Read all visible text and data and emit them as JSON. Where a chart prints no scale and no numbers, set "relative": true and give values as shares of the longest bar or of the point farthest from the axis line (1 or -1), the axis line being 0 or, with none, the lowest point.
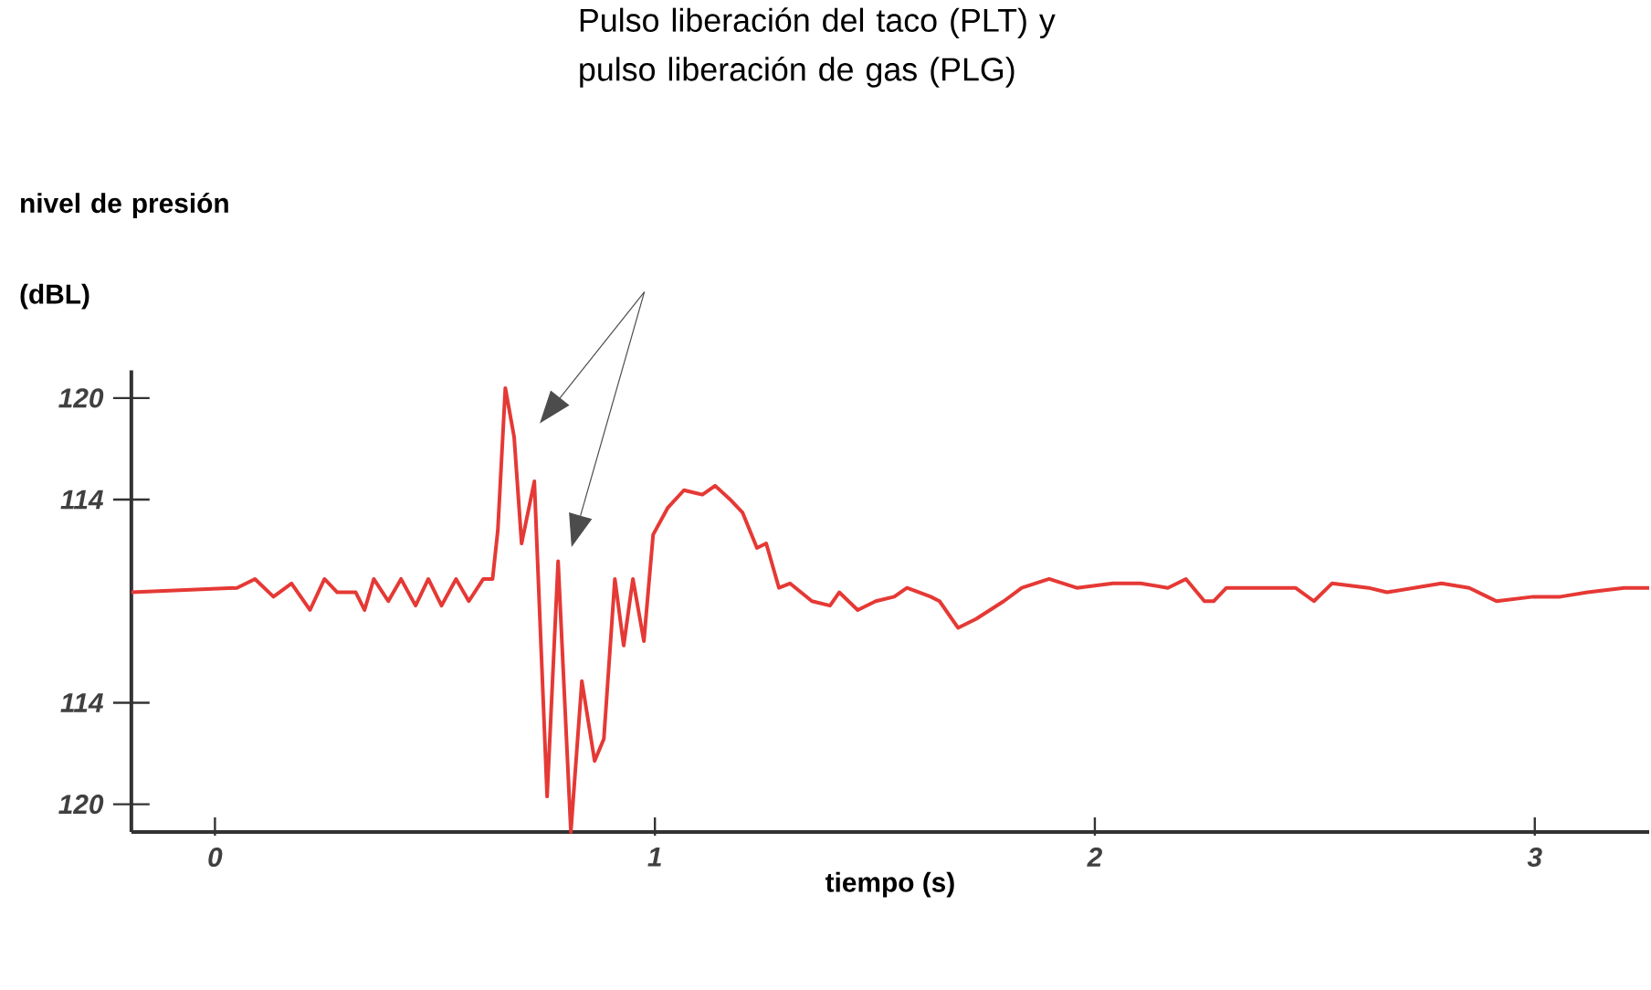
{
  "chart_data": {
    "type": "line",
    "xlabel": "tiempo (s)",
    "ylabel": "nivel de presión (dBL)",
    "annotations": [
      "Pulso liberación del taco (PLT) y pulso liberación de gas (PLG)",
      "120",
      "114",
      "114",
      "120"
    ],
    "xlim": [
      -0.19,
      3.26
    ],
    "xticks": [
      0,
      1,
      2,
      3
    ],
    "relative": true,
    "grid": false,
    "marker": "none",
    "line_style": "solid",
    "series": [
      {
        "color": "#e53935",
        "x": [
          -0.19,
          0.05,
          0.091,
          0.133,
          0.174,
          0.216,
          0.249,
          0.278,
          0.32,
          0.34,
          0.361,
          0.394,
          0.423,
          0.456,
          0.485,
          0.515,
          0.548,
          0.577,
          0.61,
          0.631,
          0.643,
          0.66,
          0.68,
          0.697,
          0.726,
          0.755,
          0.78,
          0.809,
          0.834,
          0.863,
          0.884,
          0.909,
          0.929,
          0.95,
          0.975,
          0.996,
          1.029,
          1.066,
          1.108,
          1.137,
          1.17,
          1.199,
          1.232,
          1.253,
          1.282,
          1.307,
          1.357,
          1.398,
          1.419,
          1.461,
          1.502,
          1.544,
          1.573,
          1.627,
          1.647,
          1.689,
          1.73,
          1.793,
          1.834,
          1.896,
          1.959,
          2.041,
          2.104,
          2.166,
          2.207,
          2.249,
          2.27,
          2.299,
          2.373,
          2.456,
          2.498,
          2.539,
          2.622,
          2.664,
          2.726,
          2.788,
          2.851,
          2.892,
          2.913,
          2.996,
          3.058,
          3.12,
          3.203,
          3.26
        ],
        "values": [
          0.54,
          0.55,
          0.57,
          0.53,
          0.56,
          0.5,
          0.57,
          0.54,
          0.54,
          0.5,
          0.57,
          0.52,
          0.57,
          0.51,
          0.57,
          0.51,
          0.57,
          0.52,
          0.57,
          0.57,
          0.68,
          1,
          0.89,
          0.65,
          0.79,
          0.08,
          0.61,
          0,
          0.34,
          0.16,
          0.21,
          0.57,
          0.42,
          0.57,
          0.43,
          0.67,
          0.73,
          0.77,
          0.76,
          0.78,
          0.75,
          0.72,
          0.64,
          0.65,
          0.55,
          0.56,
          0.52,
          0.51,
          0.54,
          0.5,
          0.52,
          0.53,
          0.55,
          0.53,
          0.52,
          0.46,
          0.48,
          0.52,
          0.55,
          0.57,
          0.55,
          0.56,
          0.56,
          0.55,
          0.57,
          0.52,
          0.52,
          0.55,
          0.55,
          0.55,
          0.52,
          0.56,
          0.55,
          0.54,
          0.55,
          0.56,
          0.55,
          0.53,
          0.52,
          0.53,
          0.53,
          0.54,
          0.55,
          0.55
        ]
      }
    ]
  }
}
